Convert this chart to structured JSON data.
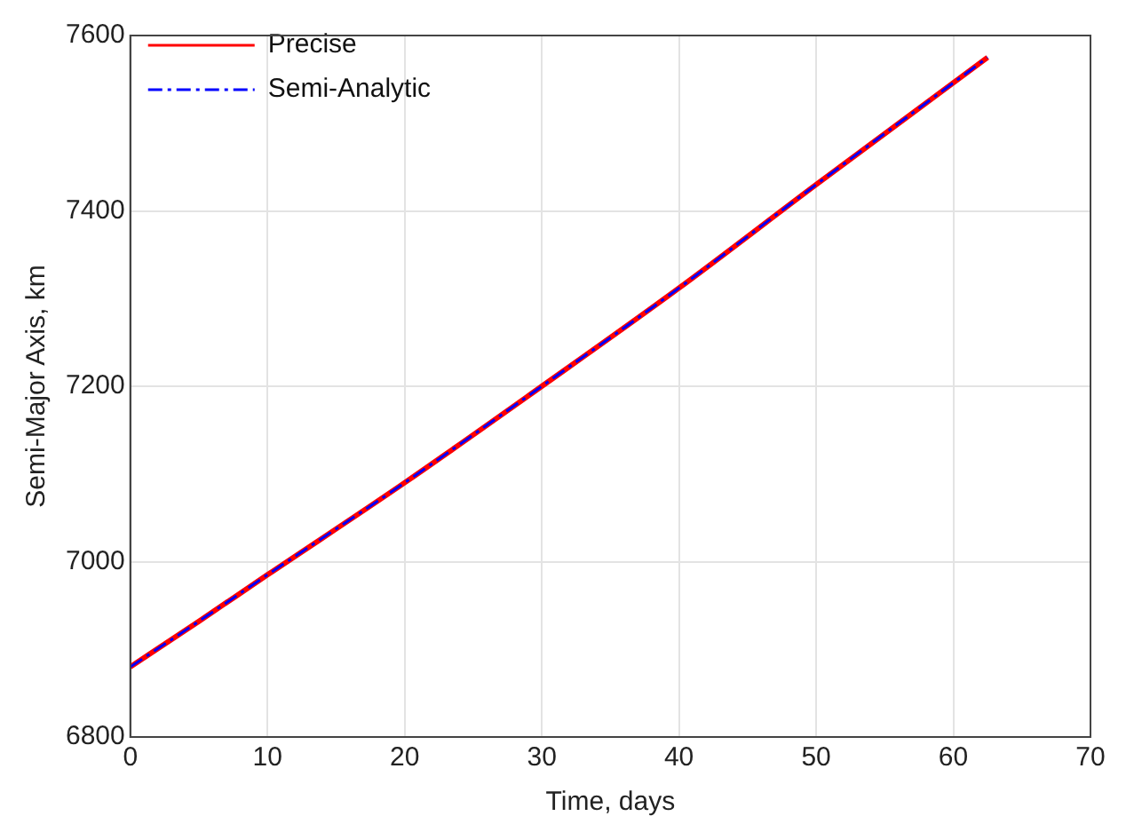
{
  "chart_data": {
    "type": "line",
    "xlabel": "Time, days",
    "ylabel": "Semi-Major Axis, km",
    "x": [
      0,
      5,
      10,
      20,
      30,
      40,
      50,
      62.5
    ],
    "series": [
      {
        "name": "Precise",
        "color": "#ff0000",
        "line_style": "solid",
        "values": [
          6880,
          6932,
          6985,
          7090,
          7200,
          7312,
          7430,
          7575
        ]
      },
      {
        "name": "Semi-Analytic",
        "color": "#0000ff",
        "line_style": "dashed",
        "values": [
          6880,
          6932,
          6985,
          7090,
          7200,
          7312,
          7430,
          7575
        ]
      }
    ],
    "xlim": [
      0,
      70
    ],
    "xticks": [
      0,
      10,
      20,
      30,
      40,
      50,
      60,
      70
    ],
    "ylim": [
      6800,
      7600
    ],
    "yticks": [
      6800,
      7000,
      7200,
      7400,
      7600
    ],
    "grid": true,
    "legend": "top left",
    "marker": "none"
  }
}
